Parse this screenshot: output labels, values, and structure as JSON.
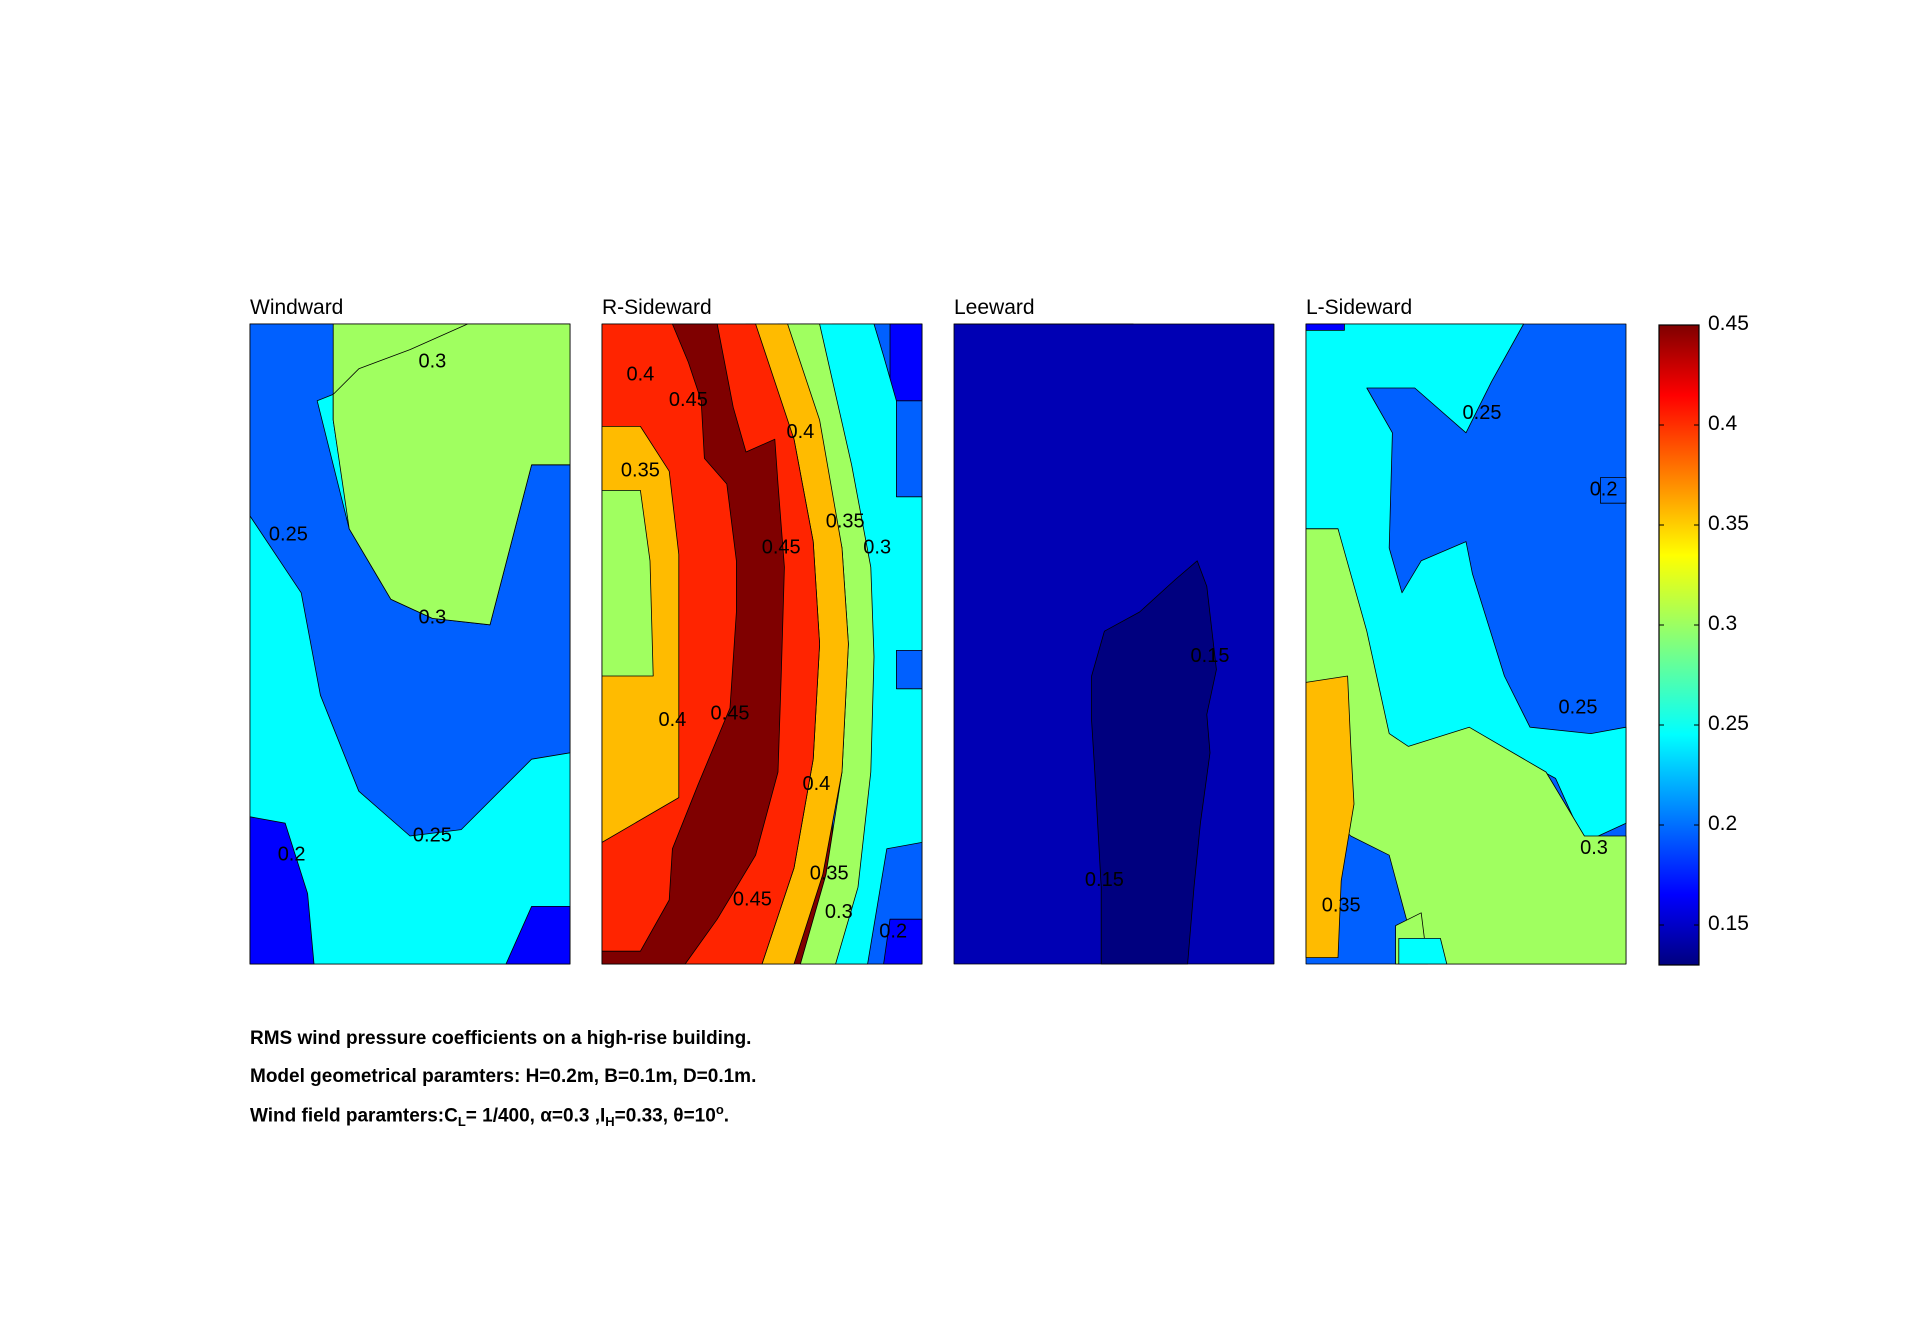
{
  "chart_data": {
    "type": "contour",
    "panels": [
      {
        "title": "Windward",
        "regions": [
          {
            "level": 0.2,
            "points": [
              [
                0,
                0
              ],
              [
                1,
                0
              ],
              [
                1,
                1
              ],
              [
                0,
                1
              ]
            ]
          },
          {
            "level": 0.25,
            "points": [
              [
                0,
                0
              ],
              [
                1,
                0
              ],
              [
                1,
                1
              ],
              [
                0,
                1
              ]
            ]
          },
          {
            "level": 0.3,
            "points": [
              [
                0,
                0
              ],
              [
                0.74,
                0
              ],
              [
                0.72,
                0.11
              ],
              [
                0.66,
                0.22
              ],
              [
                0.6,
                0.35
              ],
              [
                0.57,
                0.45
              ],
              [
                0.57,
                0.46
              ],
              [
                0.44,
                0.43
              ],
              [
                0.3,
                0.3
              ],
              [
                0.21,
                0.12
              ],
              [
                0.26,
                0.11
              ],
              [
                0.34,
                0.07
              ],
              [
                0.5,
                0.04
              ],
              [
                0.68,
                0
              ],
              [
                0,
                0
              ],
              [
                0,
                0.3
              ],
              [
                0.16,
                0.42
              ],
              [
                0.22,
                0.58
              ],
              [
                0.34,
                0.73
              ],
              [
                0.5,
                0.8
              ],
              [
                0.66,
                0.79
              ],
              [
                0.88,
                0.68
              ],
              [
                1,
                0.67
              ],
              [
                1,
                0.22
              ],
              [
                0.88,
                0.22
              ],
              [
                1,
                0.22
              ],
              [
                1,
                0
              ],
              [
                0,
                0
              ]
            ]
          },
          {
            "level": 0.35,
            "points": [
              [
                0.26,
                0.11
              ],
              [
                0.45,
                0.04
              ],
              [
                0.73,
                0
              ],
              [
                1,
                0
              ],
              [
                1,
                0.22
              ],
              [
                0.89,
                0.22
              ],
              [
                0.75,
                0.47
              ],
              [
                0.67,
                0.46
              ],
              [
                0.59,
                0.46
              ],
              [
                0.33,
                0.3
              ],
              [
                0.25,
                0.15
              ]
            ]
          },
          {
            "level": 0.15,
            "points": [
              [
                0,
                0.77
              ],
              [
                0.1,
                0.78
              ],
              [
                0.18,
                0.89
              ],
              [
                0.2,
                1
              ],
              [
                0,
                1
              ]
            ]
          },
          {
            "level": 0.15,
            "points": [
              [
                0.88,
                0.91
              ],
              [
                1,
                0.91
              ],
              [
                1,
                1
              ],
              [
                0.8,
                1
              ]
            ]
          }
        ],
        "labels": [
          {
            "text": "0.3",
            "x": 0.57,
            "y": 0.06
          },
          {
            "text": "0.25",
            "x": 0.12,
            "y": 0.33
          },
          {
            "text": "0.3",
            "x": 0.57,
            "y": 0.46
          },
          {
            "text": "0.25",
            "x": 0.57,
            "y": 0.8
          },
          {
            "text": "0.2",
            "x": 0.13,
            "y": 0.83
          }
        ]
      },
      {
        "title": "R-Sideward",
        "regions": [
          {
            "level": 0.45,
            "points": [
              [
                0,
                0
              ],
              [
                1,
                0
              ],
              [
                1,
                1
              ],
              [
                0,
                1
              ]
            ]
          }
        ],
        "labels": []
      },
      {
        "title": "Leeward",
        "regions": [],
        "labels": []
      },
      {
        "title": "L-Sideward",
        "regions": [],
        "labels": []
      }
    ],
    "colorbar": {
      "min": 0.13,
      "max": 0.45,
      "ticks": [
        "0.45",
        "0.4",
        "0.35",
        "0.3",
        "0.25",
        "0.2",
        "0.15"
      ],
      "tick_values": [
        0.45,
        0.4,
        0.35,
        0.3,
        0.25,
        0.2,
        0.15
      ],
      "colormap": "jet"
    }
  },
  "caption": {
    "line1": "RMS wind pressure coefficients on a high-rise building.",
    "line2": "Model geometrical paramters: H=0.2m, B=0.1m, D=0.1m.",
    "line3_a": "Wind field paramters:C",
    "line3_sub1": "L",
    "line3_b": "= 1/400, α=0.3 ,I",
    "line3_sub2": "H",
    "line3_c": "=0.33, θ=10",
    "line3_sup": "o",
    "line3_d": "."
  }
}
